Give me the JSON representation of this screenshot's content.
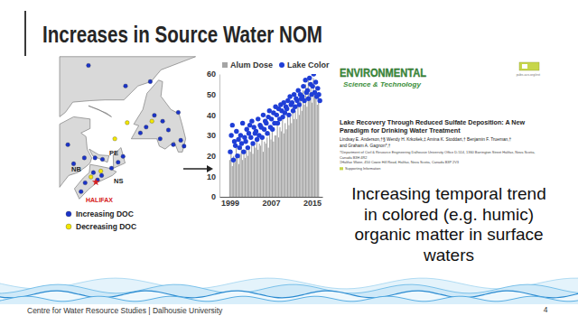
{
  "slide": {
    "title": "Increases in Source Water NOM",
    "footer": "Centre for Water Resource Studies | Dalhousie University",
    "page_number": 4
  },
  "map": {
    "labels": [
      "NB",
      "PE",
      "NS"
    ],
    "city": "HALIFAX",
    "series": [
      {
        "name": "Increasing DOC",
        "color": "#1a33c9",
        "lon": [
          -64.5,
          -60.0,
          -57.0,
          -53.6,
          -55.5,
          -54.8,
          -56.5,
          -57.5,
          -58.2,
          -53.3,
          -54.2,
          -55.8,
          -52.9,
          -67.0,
          -66.3,
          -65.0,
          -63.7,
          -62.8,
          -63.9,
          -64.9,
          -65.4,
          -61.7,
          -60.9,
          -60.3,
          -62.9,
          -63.4
        ],
        "lat": [
          52.6,
          51.2,
          51.5,
          49.4,
          48.8,
          48.2,
          49.2,
          48.4,
          48.0,
          47.5,
          47.2,
          47.6,
          47.1,
          47.2,
          45.9,
          46.3,
          46.3,
          46.2,
          45.3,
          44.6,
          44.0,
          45.6,
          46.0,
          46.4,
          45.1,
          44.8
        ]
      },
      {
        "name": "Decreasing DOC",
        "color": "#f2e600",
        "lon": [
          -61.3,
          -59.8,
          -56.8,
          -64.2,
          -63.0
        ],
        "lat": [
          47.6,
          48.7,
          48.8,
          45.0,
          45.4
        ]
      }
    ]
  },
  "chart_data": {
    "type": "bar",
    "legend": "top",
    "grid": false,
    "xlim": [
      1997,
      2017
    ],
    "xticks": [
      1999,
      2007,
      2015
    ],
    "ylim": [
      0,
      60
    ],
    "yticks": [
      0,
      10,
      20,
      30,
      40,
      50,
      60
    ],
    "series": [
      {
        "name": "Alum Dose",
        "type": "bar",
        "color": "#a5a5a5",
        "x": [
          1999,
          1999.25,
          1999.5,
          1999.75,
          2000,
          2000.25,
          2000.5,
          2000.75,
          2001,
          2001.25,
          2001.5,
          2001.75,
          2002,
          2002.25,
          2002.5,
          2002.75,
          2003,
          2003.25,
          2003.5,
          2003.75,
          2004,
          2004.25,
          2004.5,
          2004.75,
          2005,
          2005.25,
          2005.5,
          2005.75,
          2006,
          2006.25,
          2006.5,
          2006.75,
          2007,
          2007.25,
          2007.5,
          2007.75,
          2008,
          2008.25,
          2008.5,
          2008.75,
          2009,
          2009.25,
          2009.5,
          2009.75,
          2010,
          2010.25,
          2010.5,
          2010.75,
          2011,
          2011.25,
          2011.5,
          2011.75,
          2012,
          2012.25,
          2012.5,
          2012.75,
          2013,
          2013.25,
          2013.5,
          2013.75,
          2014,
          2014.25,
          2014.5,
          2014.75,
          2015,
          2015.25,
          2015.5,
          2015.75,
          2016,
          2016.25
        ],
        "values": [
          18,
          22,
          15,
          20,
          17,
          24,
          19,
          16,
          21,
          25,
          18,
          22,
          19,
          23,
          20,
          24,
          22,
          27,
          21,
          25,
          24,
          28,
          23,
          26,
          25,
          30,
          22,
          27,
          26,
          29,
          24,
          31,
          28,
          33,
          27,
          30,
          30,
          35,
          29,
          34,
          32,
          38,
          31,
          36,
          33,
          40,
          35,
          39,
          36,
          44,
          38,
          42,
          38,
          46,
          40,
          49,
          42,
          52,
          45,
          55,
          44,
          57,
          48,
          53,
          46,
          58,
          50,
          54,
          45,
          51
        ]
      },
      {
        "name": "Lake Color",
        "type": "scatter",
        "marker": "circle",
        "color": "#1f3ed6",
        "x": [
          1999.1,
          1999.3,
          1999.5,
          1999.7,
          1999.9,
          2000.1,
          2000.3,
          2000.5,
          2000.7,
          2000.9,
          2001.1,
          2001.3,
          2001.5,
          2001.7,
          2001.9,
          2002.1,
          2002.3,
          2002.5,
          2002.7,
          2002.9,
          2003.1,
          2003.3,
          2003.5,
          2003.7,
          2003.9,
          2004.1,
          2004.3,
          2004.5,
          2004.7,
          2004.9,
          2005.1,
          2005.3,
          2005.5,
          2005.7,
          2005.9,
          2006.1,
          2006.3,
          2006.5,
          2006.7,
          2006.9,
          2007.1,
          2007.3,
          2007.5,
          2007.7,
          2007.9,
          2008.1,
          2008.3,
          2008.5,
          2008.7,
          2008.9,
          2009.1,
          2009.3,
          2009.5,
          2009.7,
          2009.9,
          2010.1,
          2010.3,
          2010.5,
          2010.7,
          2010.9,
          2011.1,
          2011.3,
          2011.5,
          2011.7,
          2011.9,
          2012.1,
          2012.3,
          2012.5,
          2012.7,
          2012.9,
          2013.1,
          2013.3,
          2013.5,
          2013.7,
          2013.9,
          2014.1,
          2014.3,
          2014.5,
          2014.7,
          2014.9,
          2015.1,
          2015.3,
          2015.5,
          2015.7,
          2015.9,
          2016.1,
          2016.3,
          2016.5
        ],
        "values": [
          22,
          30,
          35,
          18,
          27,
          25,
          32,
          20,
          28,
          24,
          30,
          26,
          36,
          22,
          29,
          27,
          33,
          24,
          31,
          35,
          29,
          37,
          26,
          34,
          31,
          32,
          28,
          38,
          30,
          35,
          34,
          29,
          40,
          33,
          37,
          36,
          31,
          39,
          42,
          34,
          38,
          33,
          41,
          36,
          44,
          40,
          36,
          43,
          38,
          45,
          42,
          39,
          46,
          41,
          44,
          43,
          47,
          40,
          49,
          45,
          46,
          42,
          50,
          44,
          48,
          47,
          52,
          45,
          50,
          48,
          49,
          54,
          47,
          57,
          51,
          52,
          48,
          58,
          55,
          50,
          54,
          60,
          51,
          56,
          49,
          53,
          50,
          47
        ]
      }
    ]
  },
  "paper": {
    "journal_lines": [
      "ENVIRONMENTAL",
      "Science & Technology"
    ],
    "url": "pubs.acs.org/est",
    "title_lines": [
      "Lake Recovery Through Reduced Sulfate Deposition: A New",
      "Paradigm for Drinking Water Treatment"
    ],
    "author_lines": [
      "Lindsay E. Anderson,†§ Wendy H. Krkošek,‡ Amina K. Stoddart,† Benjamin F. Trueman,†",
      "and Graham A. Gagnon*,†"
    ],
    "affiliation_lines": [
      "†Department of Civil & Resource Engineering Dalhousie University Office D-514, 1360 Barrington Street Halifax, Nova Scotia,",
      "Canada B3H 4R2",
      "‡Halifax Water, 450 Cowie Hill Road, Halifax, Nova Scotia, Canada B3P 2V3"
    ],
    "supporting": "Supporting Information"
  },
  "caption": {
    "lines": [
      "Increasing temporal trend",
      "in colored (e.g. humic)",
      "organic matter in surface",
      "waters"
    ]
  }
}
